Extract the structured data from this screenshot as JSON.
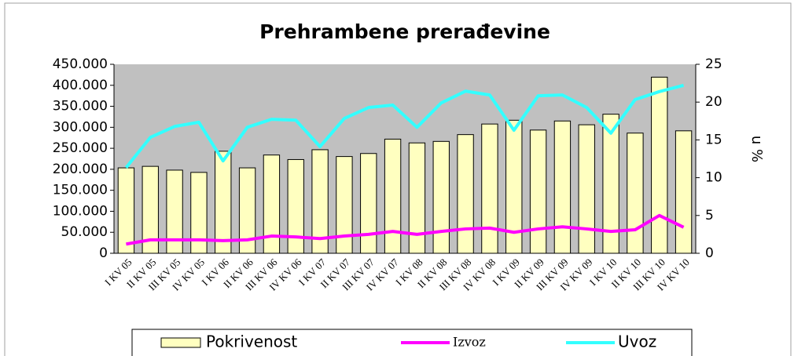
{
  "chart_data": {
    "type": "bar",
    "title": "Prehrambene prerađevine",
    "y2label": "u %",
    "categories": [
      "I KV 05",
      "II KV 05",
      "III KV 05",
      "IV KV 05",
      "I KV 06",
      "II KV 06",
      "III KV 06",
      "IV KV 06",
      "I KV 07",
      "II KV 07",
      "III KV 07",
      "IV KV 07",
      "I KV 08",
      "II KV 08",
      "III KV 08",
      "IV KV 08",
      "I KV 09",
      "II KV 09",
      "III KV 09",
      "IV KV 09",
      "I KV 10",
      "II KV 10",
      "III KV 10",
      "IV KV 10"
    ],
    "series": [
      {
        "name": "Pokrivenost",
        "type": "bar",
        "axis": "y2",
        "color": "#ffffc0",
        "values": [
          11.3,
          11.5,
          11.0,
          10.7,
          13.5,
          11.3,
          13.0,
          12.4,
          13.7,
          12.8,
          13.2,
          15.1,
          14.6,
          14.8,
          15.7,
          17.1,
          17.6,
          16.3,
          17.5,
          17.0,
          18.4,
          15.9,
          23.3,
          16.2
        ]
      },
      {
        "name": "Izvoz",
        "type": "line",
        "color": "#ff00ff",
        "values": [
          22000,
          32000,
          32000,
          32000,
          30000,
          32000,
          41000,
          39000,
          35000,
          41000,
          45000,
          52000,
          45000,
          52000,
          58000,
          60000,
          50000,
          58000,
          63000,
          58000,
          52000,
          56000,
          90000,
          62000
        ]
      },
      {
        "name": "Uvoz",
        "type": "line",
        "color": "#33ffff",
        "values": [
          204000,
          276000,
          302000,
          312000,
          220000,
          300000,
          319000,
          317000,
          254000,
          321000,
          347000,
          353000,
          300000,
          358000,
          386000,
          377000,
          293000,
          375000,
          377000,
          347000,
          286000,
          366000,
          385000,
          400000
        ]
      }
    ],
    "ylim": [
      0,
      450000
    ],
    "yticks": [
      0,
      {
        "value": 50000,
        "label": "50.000"
      },
      {
        "value": 100000,
        "label": "100.000"
      },
      {
        "value": 150000,
        "label": "150.000"
      },
      {
        "value": 200000,
        "label": "200.000"
      },
      {
        "value": 250000,
        "label": "250.000"
      },
      {
        "value": 300000,
        "label": "300.000"
      },
      {
        "value": 350000,
        "label": "350.000"
      },
      {
        "value": 400000,
        "label": "400.000"
      },
      {
        "value": 450000,
        "label": "450.000"
      }
    ],
    "y2lim": [
      0,
      25
    ],
    "y2ticks": [
      0,
      5,
      10,
      15,
      20,
      25
    ],
    "legend": "bottom"
  }
}
